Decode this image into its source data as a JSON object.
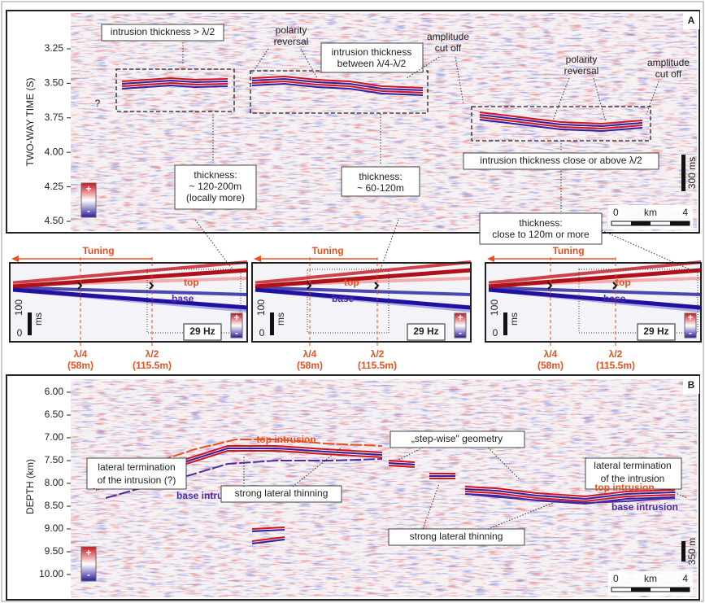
{
  "panel_a": {
    "label": "A",
    "axis_label": "TWO-WAY TIME (S)",
    "ticks": [
      "3.25",
      "3.50",
      "3.75",
      "4.00",
      "4.25",
      "4.50"
    ],
    "annotations": [
      {
        "lines": [
          "intrusion thickness > λ/2"
        ]
      },
      {
        "lines": [
          "polarity",
          "reversal"
        ]
      },
      {
        "lines": [
          "intrusion thickness",
          "between λ/4-λ/2"
        ]
      },
      {
        "lines": [
          "amplitude",
          "cut off"
        ]
      },
      {
        "lines": [
          "?"
        ]
      },
      {
        "lines": [
          "polarity",
          "reversal"
        ]
      },
      {
        "lines": [
          "amplitude",
          "cut off"
        ]
      },
      {
        "lines": [
          "intrusion thickness close or above λ/2"
        ]
      },
      {
        "lines": [
          "thickness:",
          "~ 120-200m",
          "(locally more)"
        ]
      },
      {
        "lines": [
          "thickness:",
          "~ 60-120m"
        ]
      },
      {
        "lines": [
          "thickness:",
          "close to 120m or more"
        ]
      }
    ],
    "vertical_scale": "300 ms",
    "scale_bar": [
      "0",
      "km",
      "4"
    ],
    "polarity": [
      "+",
      "-"
    ]
  },
  "insets": [
    {
      "tuning": "Tuning",
      "top": "top",
      "base": "base",
      "scale": [
        "100",
        "ms",
        "0"
      ],
      "frequency": "29 Hz",
      "polarity": [
        "+",
        "-"
      ],
      "lambda4": [
        "λ/4",
        "(58m)"
      ],
      "lambda2": [
        "λ/2",
        "(115.5m)"
      ]
    },
    {
      "tuning": "Tuning",
      "top": "top",
      "base": "base",
      "scale": [
        "100",
        "ms",
        "0"
      ],
      "frequency": "29 Hz",
      "polarity": [
        "+",
        "-"
      ],
      "lambda4": [
        "λ/4",
        "(58m)"
      ],
      "lambda2": [
        "λ/2",
        "(115.5m)"
      ]
    },
    {
      "tuning": "Tuning",
      "top": "top",
      "base": "base",
      "scale": [
        "100",
        "ms",
        "0"
      ],
      "frequency": "29 Hz",
      "polarity": [
        "+",
        "-"
      ],
      "lambda4": [
        "λ/4",
        "(58m)"
      ],
      "lambda2": [
        "λ/2",
        "(115.5m)"
      ]
    }
  ],
  "panel_b": {
    "label": "B",
    "axis_label": "DEPTH (km)",
    "ticks": [
      "6.00",
      "6.50",
      "7.00",
      "7.50",
      "8.00",
      "8.50",
      "9.00",
      "9.50",
      "10.00"
    ],
    "annotations": [
      {
        "lines": [
          "lateral termination",
          "of the intrusion (?)"
        ]
      },
      {
        "lines": [
          "top intrusion"
        ]
      },
      {
        "lines": [
          "base intrusion"
        ]
      },
      {
        "lines": [
          "strong lateral thinning"
        ]
      },
      {
        "lines": [
          "„step-wise\" geometry"
        ]
      },
      {
        "lines": [
          "lateral termination",
          "of the intrusion"
        ]
      },
      {
        "lines": [
          "top intrusion"
        ]
      },
      {
        "lines": [
          "base intrusion"
        ]
      },
      {
        "lines": [
          "strong lateral thinning"
        ]
      }
    ],
    "vertical_scale": "350 m",
    "scale_bar": [
      "0",
      "km",
      "4"
    ],
    "polarity": [
      "+",
      "-"
    ]
  }
}
